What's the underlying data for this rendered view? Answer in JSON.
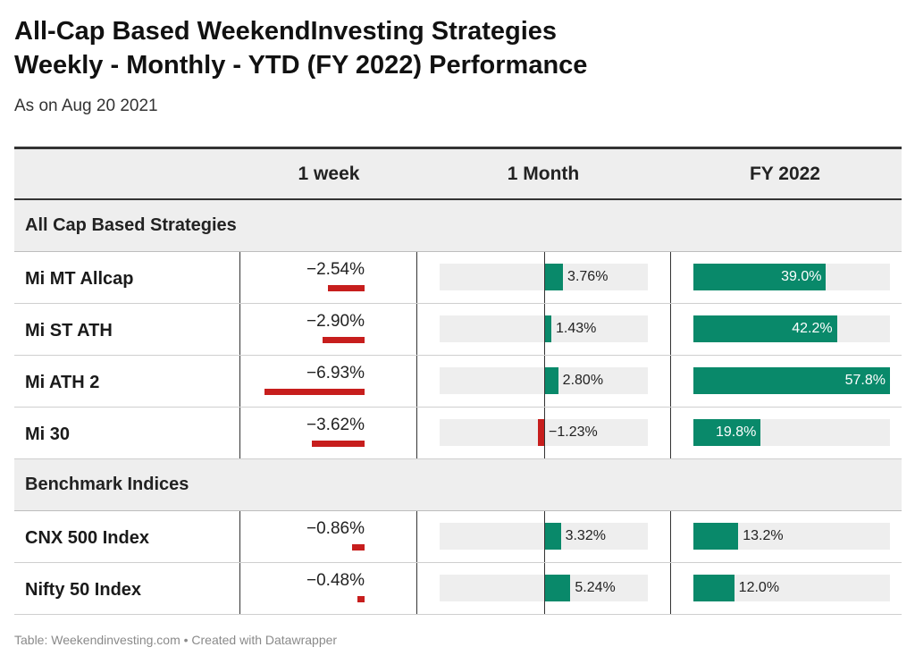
{
  "title_line1": "All-Cap Based WeekendInvesting Strategies",
  "title_line2": "Weekly - Monthly - YTD (FY 2022)  Performance",
  "subtitle": "As on Aug 20 2021",
  "footer": "Table: Weekendinvesting.com • Created with Datawrapper",
  "colors": {
    "positive": "#09896a",
    "negative": "#c71e1d",
    "track": "#eeeeee"
  },
  "chart_data": {
    "type": "table",
    "columns": [
      "",
      "1 week",
      "1 Month",
      "FY 2022"
    ],
    "groups": [
      {
        "name": "All Cap Based Strategies",
        "rows": [
          {
            "name": "Mi MT Allcap",
            "week": -2.54,
            "week_label": "−2.54%",
            "month": 3.76,
            "month_label": "3.76%",
            "fy": 39.0,
            "fy_label": "39.0%"
          },
          {
            "name": "Mi ST ATH",
            "week": -2.9,
            "week_label": "−2.90%",
            "month": 1.43,
            "month_label": "1.43%",
            "fy": 42.2,
            "fy_label": "42.2%"
          },
          {
            "name": "Mi ATH 2",
            "week": -6.93,
            "week_label": "−6.93%",
            "month": 2.8,
            "month_label": "2.80%",
            "fy": 57.8,
            "fy_label": "57.8%"
          },
          {
            "name": "Mi 30",
            "week": -3.62,
            "week_label": "−3.62%",
            "month": -1.23,
            "month_label": "−1.23%",
            "fy": 19.8,
            "fy_label": "19.8%"
          }
        ]
      },
      {
        "name": "Benchmark Indices",
        "rows": [
          {
            "name": "CNX 500 Index",
            "week": -0.86,
            "week_label": "−0.86%",
            "month": 3.32,
            "month_label": "3.32%",
            "fy": 13.2,
            "fy_label": "13.2%"
          },
          {
            "name": "Nifty 50 Index",
            "week": -0.48,
            "week_label": "−0.48%",
            "month": 5.24,
            "month_label": "5.24%",
            "fy": 12.0,
            "fy_label": "12.0%"
          }
        ]
      }
    ]
  }
}
